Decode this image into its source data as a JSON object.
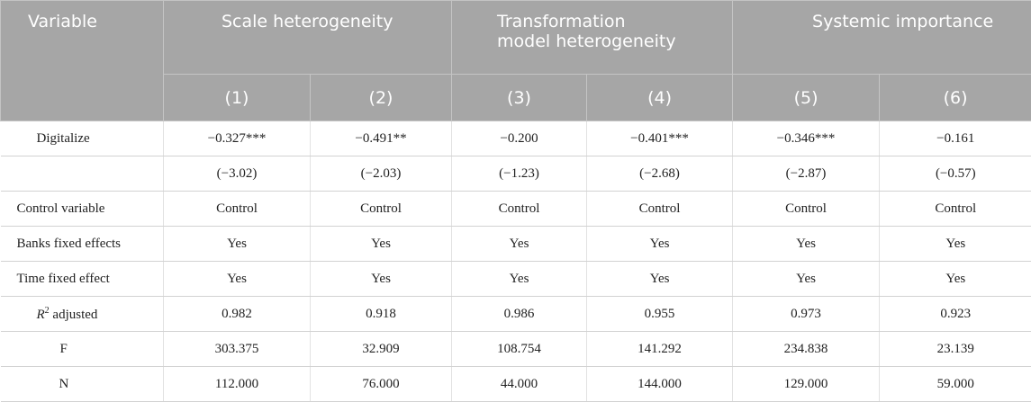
{
  "header": {
    "variable": "Variable",
    "groups": [
      "Scale heterogeneity",
      "Transformation model heterogeneity",
      "Systemic importance"
    ],
    "groups_lines": {
      "g2_line1": "Transformation",
      "g2_line2": "model heterogeneity"
    },
    "columns": [
      "(1)",
      "(2)",
      "(3)",
      "(4)",
      "(5)",
      "(6)"
    ]
  },
  "rows": [
    {
      "label": "Digitalize",
      "values": [
        "−0.327***",
        "−0.491**",
        "−0.200",
        "−0.401***",
        "−0.346***",
        "−0.161"
      ]
    },
    {
      "label": "",
      "values": [
        "(−3.02)",
        "(−2.03)",
        "(−1.23)",
        "(−2.68)",
        "(−2.87)",
        "(−0.57)"
      ]
    },
    {
      "label": "Control variable",
      "values": [
        "Control",
        "Control",
        "Control",
        "Control",
        "Control",
        "Control"
      ]
    },
    {
      "label": "Banks fixed effects",
      "values": [
        "Yes",
        "Yes",
        "Yes",
        "Yes",
        "Yes",
        "Yes"
      ]
    },
    {
      "label": "Time fixed effect",
      "values": [
        "Yes",
        "Yes",
        "Yes",
        "Yes",
        "Yes",
        "Yes"
      ]
    },
    {
      "label_main": "R",
      "label_sup": "2",
      "label_rest": " adjusted",
      "values": [
        "0.982",
        "0.918",
        "0.986",
        "0.955",
        "0.973",
        "0.923"
      ]
    },
    {
      "label": "F",
      "values": [
        "303.375",
        "32.909",
        "108.754",
        "141.292",
        "234.838",
        "23.139"
      ]
    },
    {
      "label": "N",
      "values": [
        "112.000",
        "76.000",
        "44.000",
        "144.000",
        "129.000",
        "59.000"
      ]
    }
  ]
}
